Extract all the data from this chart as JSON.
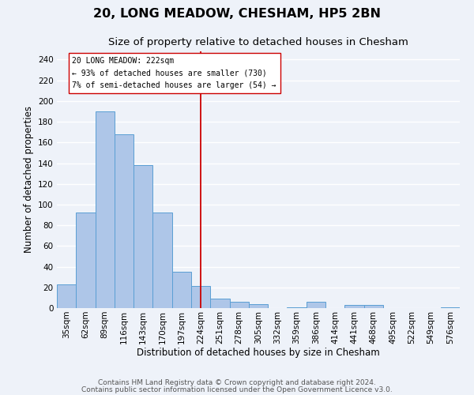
{
  "title": "20, LONG MEADOW, CHESHAM, HP5 2BN",
  "subtitle": "Size of property relative to detached houses in Chesham",
  "xlabel": "Distribution of detached houses by size in Chesham",
  "ylabel": "Number of detached properties",
  "bin_labels": [
    "35sqm",
    "62sqm",
    "89sqm",
    "116sqm",
    "143sqm",
    "170sqm",
    "197sqm",
    "224sqm",
    "251sqm",
    "278sqm",
    "305sqm",
    "332sqm",
    "359sqm",
    "386sqm",
    "414sqm",
    "441sqm",
    "468sqm",
    "495sqm",
    "522sqm",
    "549sqm",
    "576sqm"
  ],
  "bar_heights": [
    23,
    92,
    190,
    168,
    138,
    92,
    35,
    21,
    9,
    6,
    4,
    0,
    1,
    6,
    0,
    3,
    3,
    0,
    0,
    0,
    1
  ],
  "bar_color": "#aec6e8",
  "bar_edge_color": "#5a9fd4",
  "vline_x": 7,
  "vline_color": "#cc0000",
  "annotation_line1": "20 LONG MEADOW: 222sqm",
  "annotation_line2": "← 93% of detached houses are smaller (730)",
  "annotation_line3": "7% of semi-detached houses are larger (54) →",
  "ylim": [
    0,
    248
  ],
  "yticks": [
    0,
    20,
    40,
    60,
    80,
    100,
    120,
    140,
    160,
    180,
    200,
    220,
    240
  ],
  "footer1": "Contains HM Land Registry data © Crown copyright and database right 2024.",
  "footer2": "Contains public sector information licensed under the Open Government Licence v3.0.",
  "background_color": "#eef2f9",
  "grid_color": "#ffffff",
  "title_fontsize": 11.5,
  "subtitle_fontsize": 9.5,
  "axis_label_fontsize": 8.5,
  "tick_fontsize": 7.5,
  "footer_fontsize": 6.5
}
